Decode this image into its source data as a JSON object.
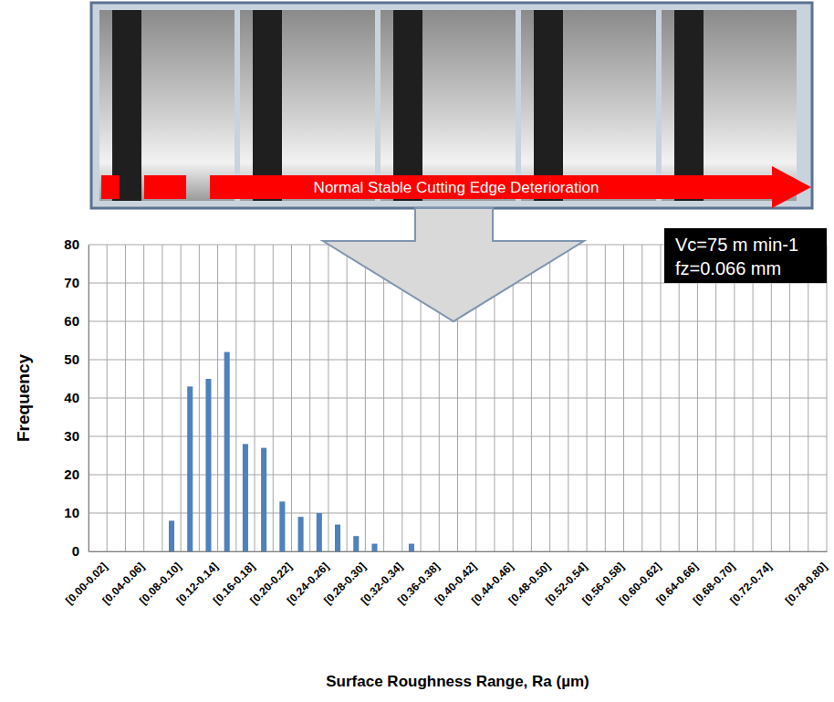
{
  "chart_data": {
    "type": "bar",
    "banner": "Normal Stable Cutting Edge Deterioration",
    "annotations": [
      "Vc=75 m min-1",
      "fz=0.066 mm"
    ],
    "x_label": "Surface Roughness Range, Ra (µm)",
    "y_label": "Frequency",
    "categories": [
      "[0.00-0.02]",
      null,
      "[0.04-0.06]",
      null,
      "[0.08-0.10]",
      null,
      "[0.12-0.14]",
      null,
      "[0.16-0.18]",
      null,
      "[0.20-0.22]",
      null,
      "[0.24-0.26]",
      null,
      "[0.28-0.30]",
      null,
      "[0.32-0.34]",
      null,
      "[0.36-0.38]",
      null,
      "[0.40-0.42]",
      null,
      "[0.44-0.46]",
      null,
      "[0.48-0.50]",
      null,
      "[0.52-0.54]",
      null,
      "[0.56-0.58]",
      null,
      "[0.60-0.62]",
      null,
      "[0.64-0.66]",
      null,
      "[0.68-0.70]",
      null,
      "[0.72-0.74]",
      null,
      null,
      "[0.78-0.80]"
    ],
    "values": [
      0,
      0,
      0,
      0,
      8,
      43,
      45,
      52,
      28,
      27,
      13,
      9,
      10,
      7,
      4,
      2,
      0,
      2,
      0,
      0,
      0,
      0,
      0,
      0,
      0,
      0,
      0,
      0,
      0,
      0,
      0,
      0,
      0,
      0,
      0,
      0,
      0,
      0,
      0,
      0
    ],
    "color": "#4f81bd",
    "ylim": [
      0,
      80
    ],
    "yticks": [
      0,
      10,
      20,
      30,
      40,
      50,
      60,
      70,
      80
    ],
    "grid": true
  }
}
